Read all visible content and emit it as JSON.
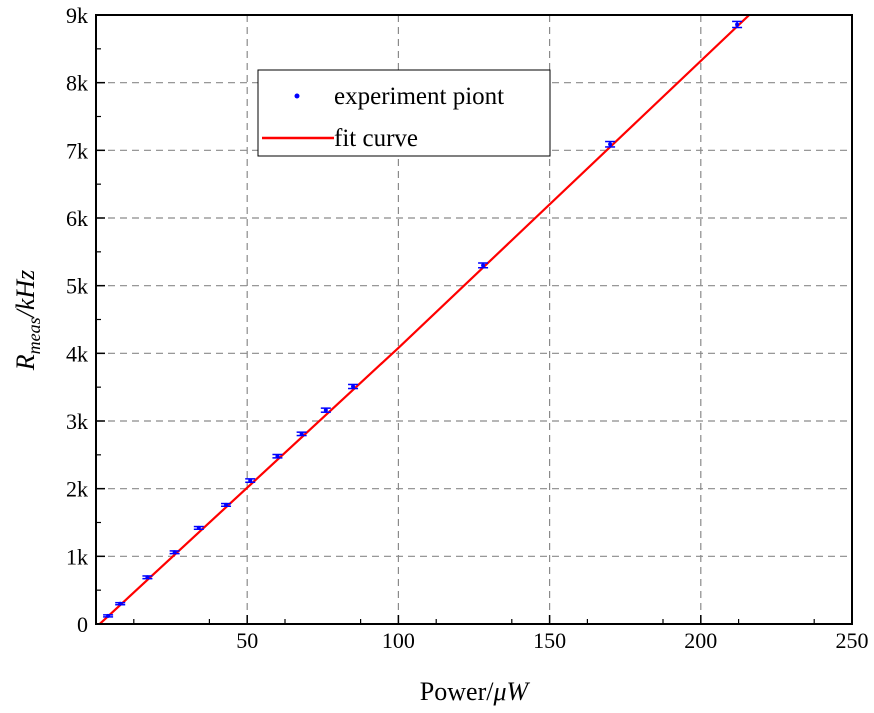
{
  "chart_data": {
    "type": "scatter",
    "title": "",
    "xlabel": "Power/μW",
    "ylabel": "R_meas/kHz",
    "xlim": [
      0,
      250
    ],
    "ylim": [
      0,
      9000
    ],
    "x_ticks": [
      50,
      100,
      150,
      200,
      250
    ],
    "x_tick_labels": [
      "50",
      "100",
      "150",
      "200",
      "250"
    ],
    "y_ticks": [
      0,
      1000,
      2000,
      3000,
      4000,
      5000,
      6000,
      7000,
      8000,
      9000
    ],
    "y_tick_labels": [
      "0",
      "1k",
      "2k",
      "3k",
      "4k",
      "5k",
      "6k",
      "7k",
      "8k",
      "9k"
    ],
    "grid": true,
    "legend_position": "top-left",
    "series": [
      {
        "name": "experiment piont",
        "kind": "points-with-error-bars",
        "color": "#0000ff",
        "x": [
          4,
          8,
          17,
          26,
          34,
          43,
          51,
          60,
          68,
          76,
          85,
          128,
          170,
          212
        ],
        "y": [
          120,
          300,
          690,
          1060,
          1420,
          1760,
          2120,
          2480,
          2810,
          3160,
          3510,
          5300,
          7090,
          8860
        ],
        "y_err": [
          15,
          15,
          20,
          20,
          20,
          20,
          25,
          25,
          25,
          30,
          30,
          35,
          40,
          45
        ]
      },
      {
        "name": "fit curve",
        "kind": "line",
        "color": "#ff0000",
        "x": [
          0,
          100,
          216
        ],
        "y": [
          -50,
          4080,
          9000
        ]
      }
    ]
  }
}
